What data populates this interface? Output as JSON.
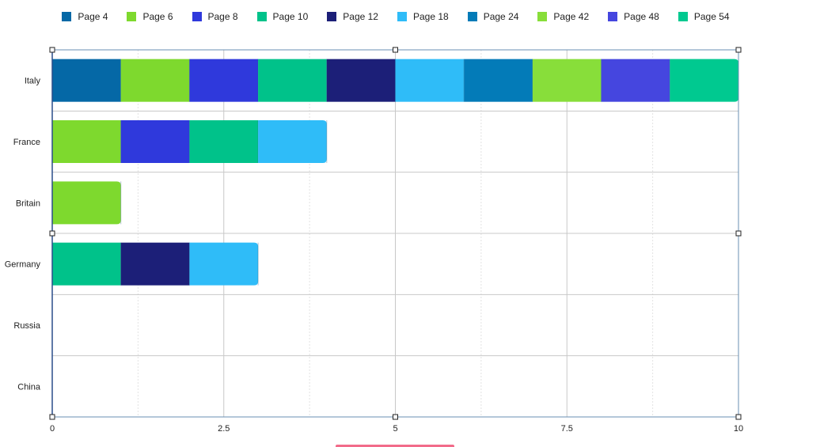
{
  "chart_data": {
    "type": "bar",
    "orientation": "horizontal",
    "stacked": true,
    "categories": [
      "Italy",
      "France",
      "Britain",
      "Germany",
      "Russia",
      "China"
    ],
    "series": [
      {
        "name": "Page 4",
        "color": "#0568a6",
        "values": [
          1,
          0,
          0,
          0,
          0,
          0
        ]
      },
      {
        "name": "Page 6",
        "color": "#7ed92e",
        "values": [
          1,
          1,
          1,
          0,
          0,
          0
        ]
      },
      {
        "name": "Page 8",
        "color": "#2f39dc",
        "values": [
          1,
          1,
          0,
          0,
          0,
          0
        ]
      },
      {
        "name": "Page 10",
        "color": "#00c28a",
        "values": [
          1,
          1,
          0,
          1,
          0,
          0
        ]
      },
      {
        "name": "Page 12",
        "color": "#1c1f78",
        "values": [
          1,
          0,
          0,
          1,
          0,
          0
        ]
      },
      {
        "name": "Page 18",
        "color": "#2fbcf8",
        "values": [
          1,
          1,
          0,
          1,
          0,
          0
        ]
      },
      {
        "name": "Page 24",
        "color": "#037bb8",
        "values": [
          1,
          0,
          0,
          0,
          0,
          0
        ]
      },
      {
        "name": "Page 42",
        "color": "#88de3a",
        "values": [
          1,
          0,
          0,
          0,
          0,
          0
        ]
      },
      {
        "name": "Page 48",
        "color": "#4546df",
        "values": [
          1,
          0,
          0,
          0,
          0,
          0
        ]
      },
      {
        "name": "Page 54",
        "color": "#00c990",
        "values": [
          1,
          0,
          0,
          0,
          0,
          0
        ]
      }
    ],
    "xlim": [
      0,
      10
    ],
    "x_ticks": [
      "0",
      "2.5",
      "5",
      "7.5",
      "10"
    ],
    "grid": true,
    "legend_position": "top",
    "title": "",
    "xlabel": "",
    "ylabel": ""
  }
}
